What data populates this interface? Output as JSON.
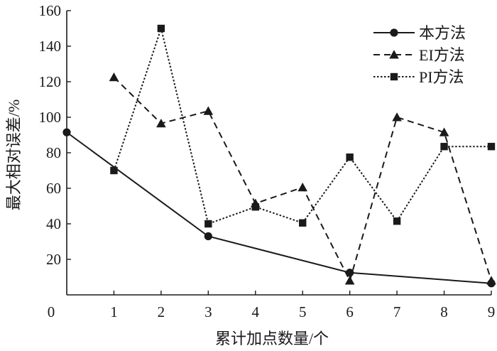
{
  "chart_data": {
    "type": "line",
    "xlabel": "累计加点数量/个",
    "ylabel": "最大相对误差/%",
    "xlim": [
      0,
      9
    ],
    "ylim": [
      0,
      160
    ],
    "xticks": [
      0,
      1,
      2,
      3,
      4,
      5,
      6,
      7,
      8,
      9
    ],
    "yticks": [
      20,
      40,
      60,
      80,
      100,
      120,
      140,
      160
    ],
    "y_zero_label": "0",
    "grid": false,
    "legend_position": "top-right",
    "series": [
      {
        "name": "本方法",
        "line_style": "solid",
        "marker": "circle",
        "x": [
          0,
          3,
          6,
          9
        ],
        "y": [
          91.5,
          33,
          12.5,
          6.5
        ]
      },
      {
        "name": "EI方法",
        "line_style": "dashed",
        "marker": "triangle",
        "x": [
          1,
          2,
          3,
          4,
          5,
          6,
          7,
          8,
          9
        ],
        "y": [
          122.5,
          96.5,
          103.5,
          51.5,
          60.5,
          8,
          100,
          91.5,
          8
        ]
      },
      {
        "name": "PI方法",
        "line_style": "dotted",
        "marker": "square",
        "x": [
          1,
          2,
          3,
          4,
          5,
          6,
          7,
          8,
          9
        ],
        "y": [
          70,
          150,
          40,
          49.5,
          40.5,
          77.5,
          41.5,
          83.5,
          83.5
        ]
      }
    ]
  }
}
